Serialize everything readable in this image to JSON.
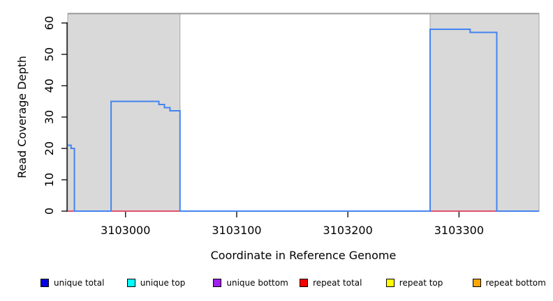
{
  "chart_data": {
    "type": "line",
    "subtype": "step-coverage",
    "title": "",
    "xlabel": "Coordinate in Reference Genome",
    "ylabel": "Read Coverage Depth",
    "xlim": [
      3102948,
      3103372
    ],
    "ylim": [
      0,
      63
    ],
    "xticks": [
      3103000,
      3103100,
      3103200,
      3103300
    ],
    "xtick_labels": [
      "3103000",
      "3103100",
      "3103200",
      "3103300"
    ],
    "yticks": [
      0,
      10,
      20,
      30,
      40,
      50,
      60
    ],
    "ytick_labels": [
      "0",
      "10",
      "20",
      "30",
      "40",
      "50",
      "60"
    ],
    "grid": false,
    "region_top_value": 63,
    "shaded_regions": [
      {
        "start": 3102948,
        "end": 3103049
      },
      {
        "start": 3103274,
        "end": 3103372
      }
    ],
    "region_fill_color": "#d9d9d9",
    "region_border_color": "#a6a6a6",
    "region_top_line_color": "#999999",
    "series": [
      {
        "name": "unique total",
        "plot_color": "#4484f0",
        "step_breakpoints": [
          [
            3102948,
            21
          ],
          [
            3102951,
            20
          ],
          [
            3102954,
            0
          ],
          [
            3102987,
            35
          ],
          [
            3103030,
            34
          ],
          [
            3103035,
            33
          ],
          [
            3103040,
            32
          ],
          [
            3103049,
            0
          ],
          [
            3103274,
            58
          ],
          [
            3103310,
            57
          ],
          [
            3103334,
            0
          ]
        ],
        "end_x": 3103372
      },
      {
        "name": "repeat total",
        "plot_color": "#e0506e",
        "step_breakpoints": [
          [
            3102948,
            0
          ]
        ],
        "end_x": 3103372
      }
    ],
    "legend_position": "bottom"
  },
  "legend": {
    "items": [
      {
        "label": "unique total",
        "color": "#0000e0"
      },
      {
        "label": "unique top",
        "color": "#00ffff"
      },
      {
        "label": "unique bottom",
        "color": "#a020f0"
      },
      {
        "label": "repeat total",
        "color": "#ff0000"
      },
      {
        "label": "repeat top",
        "color": "#ffff00"
      },
      {
        "label": "repeat bottom",
        "color": "#ffa500"
      }
    ]
  },
  "axis_color": "#000000"
}
